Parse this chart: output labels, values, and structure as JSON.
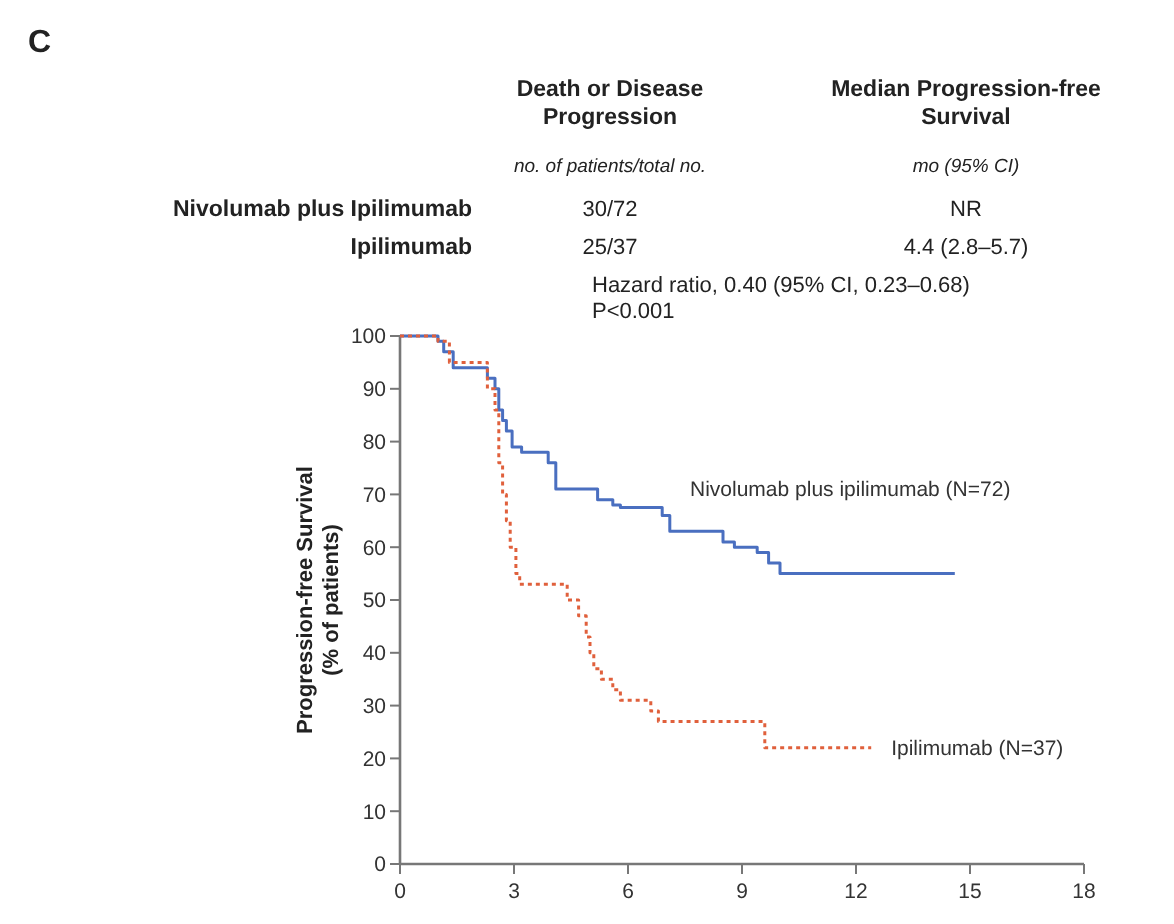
{
  "chart_data": {
    "type": "step",
    "ylabel": "Progression-free Survival\n(% of patients)",
    "annotations": [
      "C",
      "Death or Disease\nProgression",
      "Median Progression-free\nSurvival",
      "no. of patients/total no.",
      "mo (95% CI)",
      "Nivolumab plus Ipilimumab",
      "30/72",
      "NR",
      "Ipilimumab",
      "25/37",
      "4.4 (2.8–5.7)",
      "Hazard ratio, 0.40 (95% CI, 0.23–0.68)\nP<0.001"
    ],
    "xlim": [
      0,
      18
    ],
    "xticks": [
      0,
      3,
      6,
      9,
      12,
      15,
      18
    ],
    "ylim": [
      0,
      100
    ],
    "yticks": [
      0,
      10,
      20,
      30,
      40,
      50,
      60,
      70,
      80,
      90,
      100
    ],
    "grid": false,
    "series": [
      {
        "name": "Nivolumab plus ipilimumab (N=72)",
        "color": "#4a6fc0",
        "line_style": "solid",
        "x": [
          0,
          1.0,
          1.15,
          1.4,
          2.3,
          2.5,
          2.6,
          2.7,
          2.8,
          2.95,
          3.2,
          3.9,
          4.1,
          5.2,
          5.6,
          5.8,
          6.9,
          7.1,
          8.5,
          8.8,
          9.4,
          9.7,
          10.0,
          14.6
        ],
        "values": [
          100,
          99,
          97,
          94,
          92,
          90,
          86,
          84,
          82,
          79,
          78,
          76,
          71,
          69,
          68,
          67.5,
          66,
          63,
          61,
          60,
          59,
          57,
          55,
          55
        ]
      },
      {
        "name": "Ipilimumab (N=37)",
        "color": "#e0603c",
        "line_style": "dotted",
        "x": [
          0,
          1.0,
          1.3,
          2.3,
          2.5,
          2.6,
          2.7,
          2.8,
          2.9,
          3.05,
          3.15,
          4.4,
          4.7,
          4.9,
          5.0,
          5.1,
          5.3,
          5.6,
          5.8,
          6.6,
          6.8,
          9.6,
          12.4
        ],
        "values": [
          100,
          99,
          95,
          90,
          86,
          76,
          70,
          65,
          60,
          55,
          53,
          50,
          47,
          43,
          40,
          37,
          35,
          33,
          31,
          29,
          27,
          22,
          22
        ]
      }
    ]
  }
}
